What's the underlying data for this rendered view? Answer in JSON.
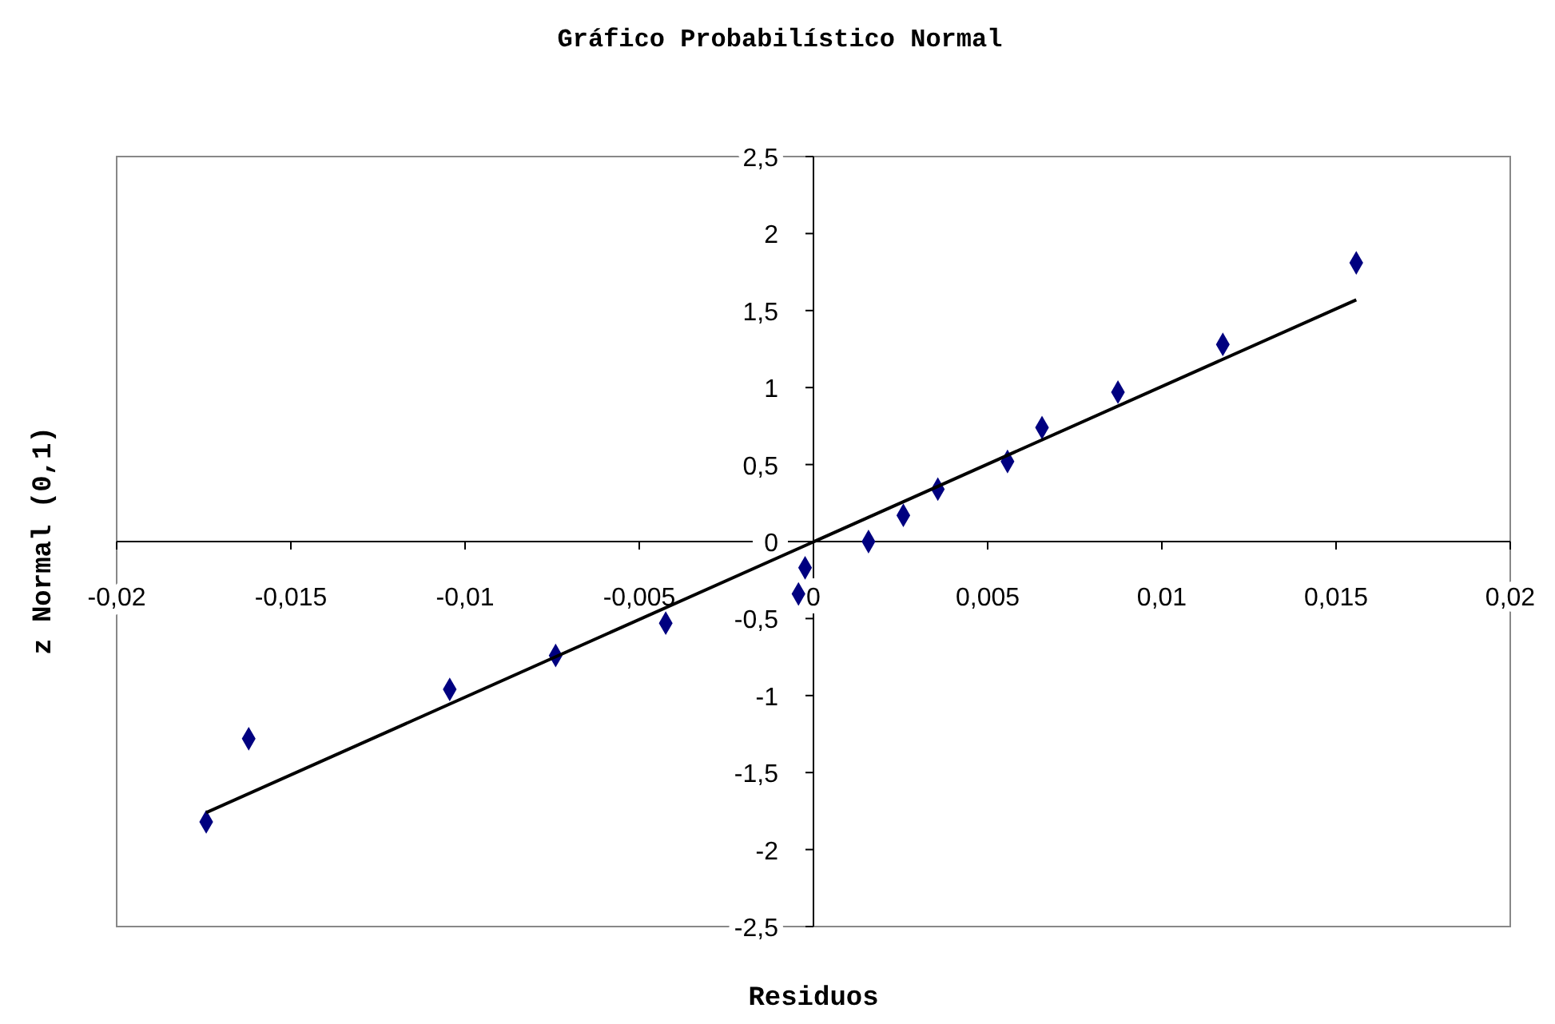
{
  "chart_data": {
    "type": "scatter",
    "title": "Gráfico Probabilístico Normal",
    "xlabel": "Residuos",
    "ylabel": "z Normal (0,1)",
    "xlim": [
      -0.02,
      0.02
    ],
    "xticks": [
      {
        "value": -0.02,
        "label": "-0,02"
      },
      {
        "value": -0.015,
        "label": "-0,015"
      },
      {
        "value": -0.01,
        "label": "-0,01"
      },
      {
        "value": -0.005,
        "label": "-0,005"
      },
      0,
      {
        "value": 0.005,
        "label": "0,005"
      },
      {
        "value": 0.01,
        "label": "0,01"
      },
      {
        "value": 0.015,
        "label": "0,015"
      },
      {
        "value": 0.02,
        "label": "0,02"
      }
    ],
    "ylim": [
      -2.5,
      2.5
    ],
    "yticks": [
      {
        "value": -2.5,
        "label": "-2,5"
      },
      -2,
      {
        "value": -1.5,
        "label": "-1,5"
      },
      -1,
      {
        "value": -0.5,
        "label": "-0,5"
      },
      0,
      {
        "value": 0.5,
        "label": "0,5"
      },
      1,
      {
        "value": 1.5,
        "label": "1,5"
      },
      2,
      {
        "value": 2.5,
        "label": "2,5"
      }
    ],
    "grid": false,
    "marker": "diamond",
    "series": [
      {
        "type": "scatter",
        "color": "#000080",
        "x": [
          -0.01743,
          -0.01621,
          -0.01044,
          -0.0074,
          -0.00424,
          -0.00043,
          -0.00024,
          0.00158,
          0.00258,
          0.00357,
          0.00557,
          0.00656,
          0.00874,
          0.01175,
          0.01558
        ],
        "values": [
          -1.82,
          -1.28,
          -0.96,
          -0.74,
          -0.53,
          -0.34,
          -0.17,
          0,
          0.17,
          0.34,
          0.52,
          0.74,
          0.97,
          1.28,
          1.81
        ]
      },
      {
        "type": "line",
        "color": "#000000",
        "marker": "none",
        "x": [
          -0.01743,
          0.01558
        ],
        "values": [
          -1.76,
          1.57
        ]
      }
    ]
  }
}
